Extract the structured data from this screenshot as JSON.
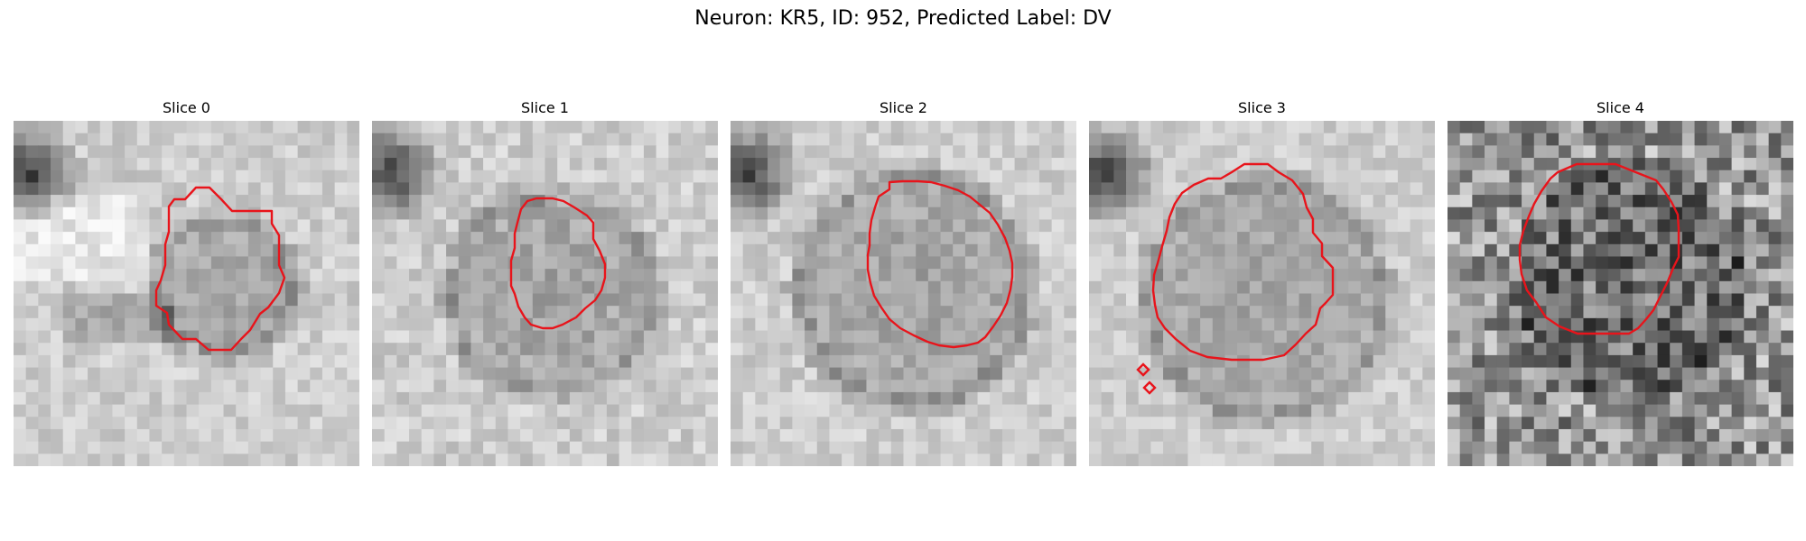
{
  "title": "Neuron: KR5, ID: 952, Predicted Label: DV",
  "colors": {
    "contour": "#e8141b",
    "background": "#ffffff"
  },
  "panels": [
    {
      "title": "Slice 0"
    },
    {
      "title": "Slice 1"
    },
    {
      "title": "Slice 2"
    },
    {
      "title": "Slice 3"
    },
    {
      "title": "Slice 4"
    }
  ]
}
